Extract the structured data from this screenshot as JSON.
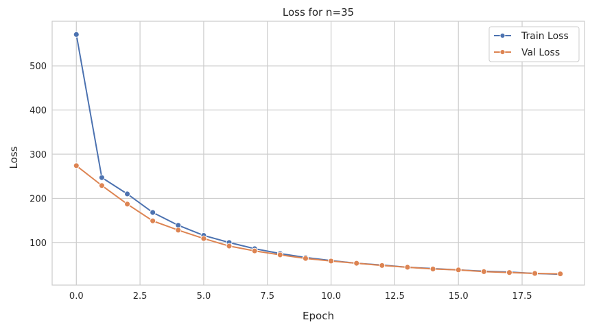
{
  "chart_data": {
    "type": "line",
    "title": "Loss for n=35",
    "xlabel": "Epoch",
    "ylabel": "Loss",
    "xlim": [
      -0.95,
      19.95
    ],
    "ylim": [
      3.6,
      601
    ],
    "xticks": [
      0.0,
      2.5,
      5.0,
      7.5,
      10.0,
      12.5,
      15.0,
      17.5
    ],
    "xtick_labels": [
      "0.0",
      "2.5",
      "5.0",
      "7.5",
      "10.0",
      "12.5",
      "15.0",
      "17.5"
    ],
    "yticks": [
      100,
      200,
      300,
      400,
      500
    ],
    "ytick_labels": [
      "100",
      "200",
      "300",
      "400",
      "500"
    ],
    "grid": true,
    "legend_placement": "top-right",
    "x": [
      0,
      1,
      2,
      3,
      4,
      5,
      6,
      7,
      8,
      9,
      10,
      11,
      12,
      13,
      14,
      15,
      16,
      17,
      18,
      19
    ],
    "series": [
      {
        "name": "Train Loss",
        "color": "#4c72b0",
        "marker": "circle",
        "values": [
          571,
          247,
          210,
          168,
          139,
          116,
          100,
          86,
          75,
          66,
          59,
          53,
          49,
          44,
          41,
          38,
          35,
          33,
          30,
          28
        ]
      },
      {
        "name": "Val Loss",
        "color": "#dd8452",
        "marker": "circle",
        "values": [
          274,
          229,
          187,
          149,
          128,
          109,
          92,
          81,
          72,
          64,
          58,
          53,
          48,
          44,
          40,
          38,
          34,
          32,
          30,
          29
        ]
      }
    ]
  }
}
